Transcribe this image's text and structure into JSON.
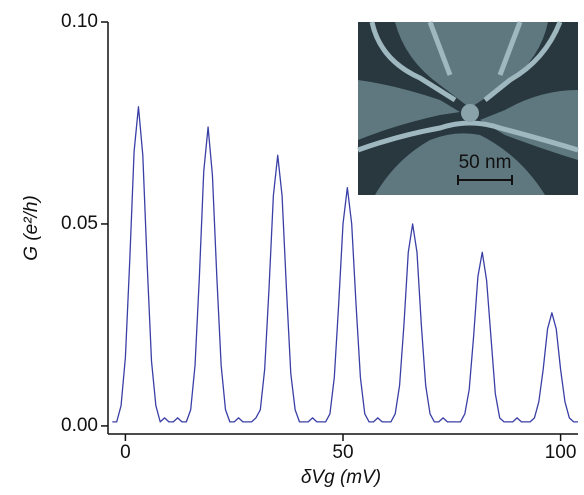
{
  "chart_data": {
    "type": "line",
    "x_label": "δVg (mV)",
    "y_label": "G (e²/h)",
    "inset_scale_label": "50 nm",
    "x": [
      -3,
      -2,
      -1,
      0,
      1,
      2,
      3,
      4,
      5,
      6,
      7,
      8,
      9,
      10,
      11,
      12,
      13,
      14,
      15,
      16,
      17,
      18,
      19,
      20,
      21,
      22,
      23,
      24,
      25,
      26,
      27,
      28,
      29,
      30,
      31,
      32,
      33,
      34,
      35,
      36,
      37,
      38,
      39,
      40,
      41,
      42,
      43,
      44,
      45,
      46,
      47,
      48,
      49,
      50,
      51,
      52,
      53,
      54,
      55,
      56,
      57,
      58,
      59,
      60,
      61,
      62,
      63,
      64,
      65,
      66,
      67,
      68,
      69,
      70,
      71,
      72,
      73,
      74,
      75,
      76,
      77,
      78,
      79,
      80,
      81,
      82,
      83,
      84,
      85,
      86,
      87,
      88,
      89,
      90,
      91,
      92,
      93,
      94,
      95,
      96,
      97,
      98,
      99,
      100,
      101,
      102,
      103,
      104
    ],
    "series": [
      {
        "color": "#3a3fa6",
        "values": [
          0.001,
          0.001,
          0.005,
          0.017,
          0.041,
          0.068,
          0.079,
          0.067,
          0.04,
          0.016,
          0.005,
          0.001,
          0.002,
          0.001,
          0.001,
          0.002,
          0.001,
          0.001,
          0.004,
          0.015,
          0.037,
          0.063,
          0.074,
          0.062,
          0.037,
          0.015,
          0.004,
          0.001,
          0.001,
          0.002,
          0.001,
          0.001,
          0.001,
          0.002,
          0.004,
          0.014,
          0.034,
          0.057,
          0.067,
          0.057,
          0.034,
          0.013,
          0.004,
          0.001,
          0.001,
          0.001,
          0.002,
          0.001,
          0.001,
          0.001,
          0.003,
          0.012,
          0.03,
          0.05,
          0.059,
          0.05,
          0.03,
          0.012,
          0.003,
          0.001,
          0.001,
          0.002,
          0.001,
          0.001,
          0.001,
          0.003,
          0.01,
          0.025,
          0.043,
          0.05,
          0.043,
          0.025,
          0.01,
          0.003,
          0.001,
          0.001,
          0.002,
          0.001,
          0.001,
          0.001,
          0.001,
          0.003,
          0.009,
          0.022,
          0.037,
          0.043,
          0.036,
          0.022,
          0.008,
          0.002,
          0.001,
          0.001,
          0.001,
          0.002,
          0.001,
          0.001,
          0.001,
          0.002,
          0.006,
          0.014,
          0.024,
          0.028,
          0.024,
          0.014,
          0.006,
          0.002,
          0.001,
          0.001
        ]
      }
    ],
    "xlim": [
      -4,
      104
    ],
    "ylim": [
      -0.002,
      0.1
    ],
    "xticks": [
      0,
      50,
      100
    ],
    "yticks": [
      {
        "value": 0,
        "label": "0.00"
      },
      0.05,
      {
        "value": 0.1,
        "label": "0.10"
      }
    ]
  }
}
